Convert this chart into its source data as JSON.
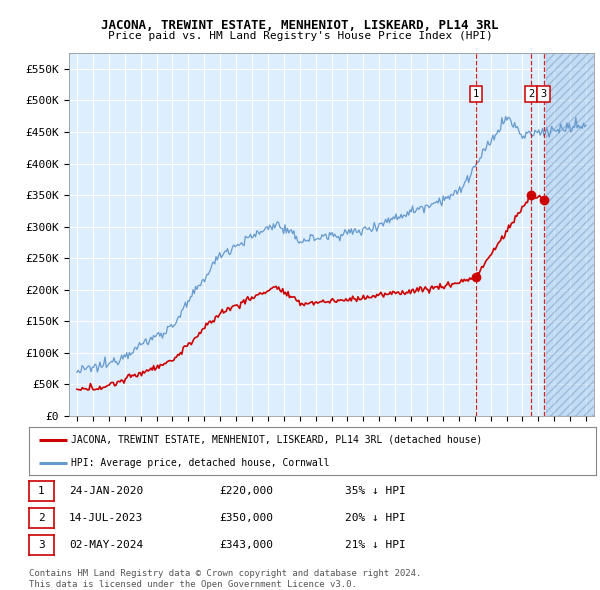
{
  "title": "JACONA, TREWINT ESTATE, MENHENIOT, LISKEARD, PL14 3RL",
  "subtitle": "Price paid vs. HM Land Registry's House Price Index (HPI)",
  "yticks": [
    0,
    50000,
    100000,
    150000,
    200000,
    250000,
    300000,
    350000,
    400000,
    450000,
    500000,
    550000
  ],
  "ytick_labels": [
    "£0",
    "£50K",
    "£100K",
    "£150K",
    "£200K",
    "£250K",
    "£300K",
    "£350K",
    "£400K",
    "£450K",
    "£500K",
    "£550K"
  ],
  "xlim_start": 1994.5,
  "xlim_end": 2027.5,
  "ylim_top": 575000,
  "transactions": [
    {
      "label": "1",
      "date": "24-JAN-2020",
      "price": 220000,
      "price_str": "£220,000",
      "pct": "35% ↓ HPI",
      "year": 2020.07
    },
    {
      "label": "2",
      "date": "14-JUL-2023",
      "price": 350000,
      "price_str": "£350,000",
      "pct": "20% ↓ HPI",
      "year": 2023.54
    },
    {
      "label": "3",
      "date": "02-MAY-2024",
      "price": 343000,
      "price_str": "£343,000",
      "pct": "21% ↓ HPI",
      "year": 2024.33
    }
  ],
  "legend_line1": "JACONA, TREWINT ESTATE, MENHENIOT, LISKEARD, PL14 3RL (detached house)",
  "legend_line2": "HPI: Average price, detached house, Cornwall",
  "footer1": "Contains HM Land Registry data © Crown copyright and database right 2024.",
  "footer2": "This data is licensed under the Open Government Licence v3.0.",
  "red_color": "#cc0000",
  "blue_color": "#6699cc",
  "plot_bg": "#ddeeff",
  "future_start": 2024.5
}
